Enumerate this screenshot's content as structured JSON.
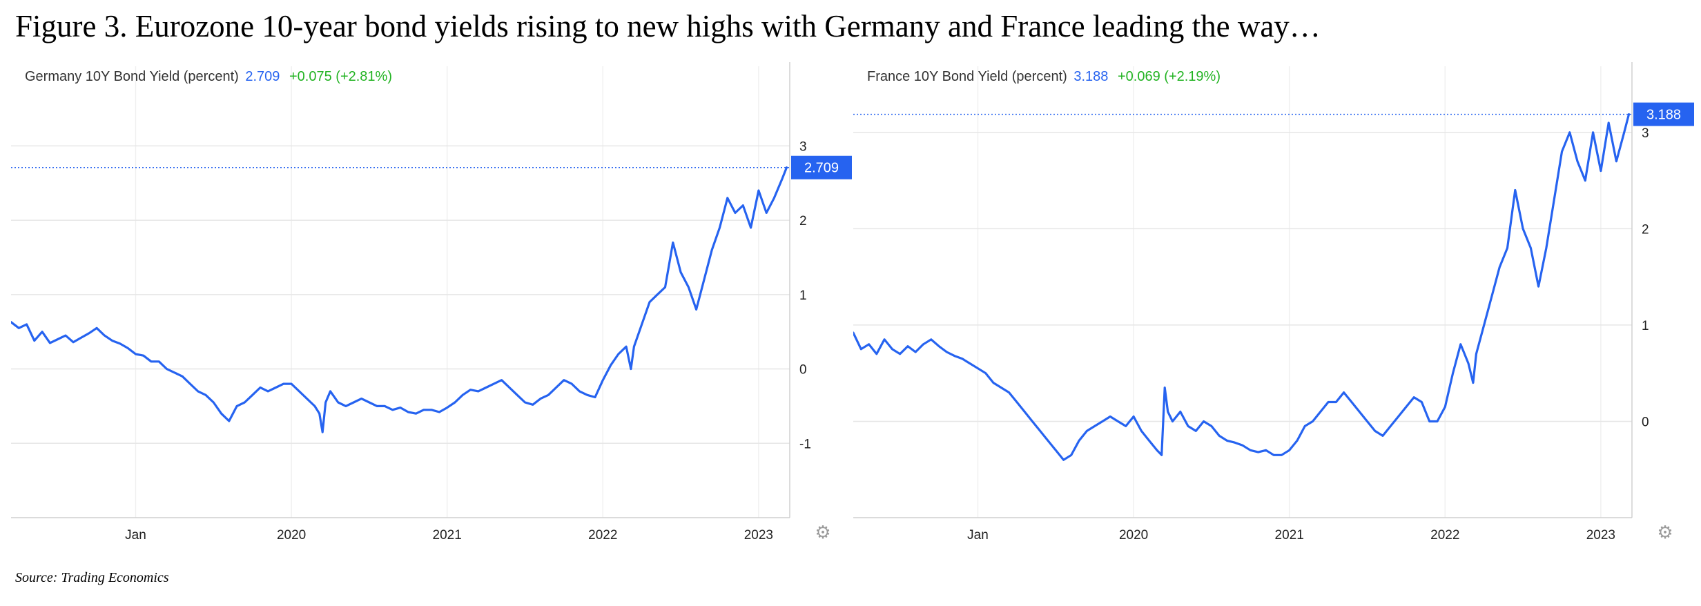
{
  "figure": {
    "title": "Figure 3. Eurozone 10-year bond yields rising to new highs with Germany and France leading the way…",
    "source": "Source: Trading Economics"
  },
  "colors": {
    "line": "#2663f0",
    "change": "#22b322",
    "grid": "#e6e6e6",
    "label_bg": "#2663f0"
  },
  "icons": {
    "settings": "gear-icon"
  },
  "chart_data": [
    {
      "type": "line",
      "title": "Germany 10Y Bond Yield (percent)",
      "last_value": "2.709",
      "change": "+0.075 (+2.81%)",
      "series": [
        {
          "name": "Germany 10Y Bond Yield"
        }
      ],
      "x_ticks": [
        {
          "label": "Jan",
          "value": 2019.0
        },
        {
          "label": "2020",
          "value": 2020.0
        },
        {
          "label": "2021",
          "value": 2021.0
        },
        {
          "label": "2022",
          "value": 2022.0
        },
        {
          "label": "2023",
          "value": 2023.0
        }
      ],
      "y_ticks": [
        -1,
        0,
        1,
        2,
        3
      ],
      "xlim": [
        2018.2,
        2023.2
      ],
      "ylim": [
        -2.0,
        3.7
      ],
      "x": [
        2018.2,
        2018.25,
        2018.3,
        2018.35,
        2018.4,
        2018.45,
        2018.5,
        2018.55,
        2018.6,
        2018.65,
        2018.7,
        2018.75,
        2018.8,
        2018.85,
        2018.9,
        2018.95,
        2019.0,
        2019.05,
        2019.1,
        2019.15,
        2019.2,
        2019.25,
        2019.3,
        2019.35,
        2019.4,
        2019.45,
        2019.5,
        2019.55,
        2019.6,
        2019.65,
        2019.7,
        2019.75,
        2019.8,
        2019.85,
        2019.9,
        2019.95,
        2020.0,
        2020.05,
        2020.1,
        2020.15,
        2020.18,
        2020.2,
        2020.22,
        2020.25,
        2020.3,
        2020.35,
        2020.4,
        2020.45,
        2020.5,
        2020.55,
        2020.6,
        2020.65,
        2020.7,
        2020.75,
        2020.8,
        2020.85,
        2020.9,
        2020.95,
        2021.0,
        2021.05,
        2021.1,
        2021.15,
        2021.2,
        2021.25,
        2021.3,
        2021.35,
        2021.4,
        2021.45,
        2021.5,
        2021.55,
        2021.6,
        2021.65,
        2021.7,
        2021.75,
        2021.8,
        2021.85,
        2021.9,
        2021.95,
        2022.0,
        2022.05,
        2022.1,
        2022.15,
        2022.18,
        2022.2,
        2022.25,
        2022.3,
        2022.35,
        2022.4,
        2022.45,
        2022.5,
        2022.55,
        2022.6,
        2022.65,
        2022.7,
        2022.75,
        2022.8,
        2022.85,
        2022.9,
        2022.95,
        2023.0,
        2023.05,
        2023.1,
        2023.15,
        2023.18
      ],
      "y": [
        0.63,
        0.55,
        0.6,
        0.38,
        0.5,
        0.35,
        0.4,
        0.45,
        0.36,
        0.42,
        0.48,
        0.55,
        0.45,
        0.38,
        0.34,
        0.28,
        0.2,
        0.18,
        0.1,
        0.1,
        0.0,
        -0.05,
        -0.1,
        -0.2,
        -0.3,
        -0.35,
        -0.45,
        -0.6,
        -0.7,
        -0.5,
        -0.45,
        -0.35,
        -0.25,
        -0.3,
        -0.25,
        -0.2,
        -0.2,
        -0.3,
        -0.4,
        -0.5,
        -0.6,
        -0.85,
        -0.45,
        -0.3,
        -0.45,
        -0.5,
        -0.45,
        -0.4,
        -0.45,
        -0.5,
        -0.5,
        -0.55,
        -0.52,
        -0.58,
        -0.6,
        -0.55,
        -0.55,
        -0.58,
        -0.52,
        -0.45,
        -0.35,
        -0.28,
        -0.3,
        -0.25,
        -0.2,
        -0.15,
        -0.25,
        -0.35,
        -0.45,
        -0.48,
        -0.4,
        -0.35,
        -0.25,
        -0.15,
        -0.2,
        -0.3,
        -0.35,
        -0.38,
        -0.15,
        0.05,
        0.2,
        0.3,
        0.0,
        0.3,
        0.6,
        0.9,
        1.0,
        1.1,
        1.7,
        1.3,
        1.1,
        0.8,
        1.2,
        1.6,
        1.9,
        2.3,
        2.1,
        2.2,
        1.9,
        2.4,
        2.1,
        2.3,
        2.55,
        2.709
      ]
    },
    {
      "type": "line",
      "title": "France 10Y Bond Yield (percent)",
      "last_value": "3.188",
      "change": "+0.069 (+2.19%)",
      "series": [
        {
          "name": "France 10Y Bond Yield"
        }
      ],
      "x_ticks": [
        {
          "label": "Jan",
          "value": 2019.0
        },
        {
          "label": "2020",
          "value": 2020.0
        },
        {
          "label": "2021",
          "value": 2021.0
        },
        {
          "label": "2022",
          "value": 2022.0
        },
        {
          "label": "2023",
          "value": 2023.0
        }
      ],
      "y_ticks": [
        0,
        1,
        2,
        3
      ],
      "xlim": [
        2018.2,
        2023.2
      ],
      "ylim": [
        -1.0,
        3.4
      ],
      "x": [
        2018.2,
        2018.25,
        2018.3,
        2018.35,
        2018.4,
        2018.45,
        2018.5,
        2018.55,
        2018.6,
        2018.65,
        2018.7,
        2018.75,
        2018.8,
        2018.85,
        2018.9,
        2018.95,
        2019.0,
        2019.05,
        2019.1,
        2019.15,
        2019.2,
        2019.25,
        2019.3,
        2019.35,
        2019.4,
        2019.45,
        2019.5,
        2019.55,
        2019.6,
        2019.65,
        2019.7,
        2019.75,
        2019.8,
        2019.85,
        2019.9,
        2019.95,
        2020.0,
        2020.05,
        2020.1,
        2020.15,
        2020.18,
        2020.2,
        2020.22,
        2020.25,
        2020.3,
        2020.35,
        2020.4,
        2020.45,
        2020.5,
        2020.55,
        2020.6,
        2020.65,
        2020.7,
        2020.75,
        2020.8,
        2020.85,
        2020.9,
        2020.95,
        2021.0,
        2021.05,
        2021.1,
        2021.15,
        2021.2,
        2021.25,
        2021.3,
        2021.35,
        2021.4,
        2021.45,
        2021.5,
        2021.55,
        2021.6,
        2021.65,
        2021.7,
        2021.75,
        2021.8,
        2021.85,
        2021.9,
        2021.95,
        2022.0,
        2022.05,
        2022.1,
        2022.15,
        2022.18,
        2022.2,
        2022.25,
        2022.3,
        2022.35,
        2022.4,
        2022.45,
        2022.5,
        2022.55,
        2022.6,
        2022.65,
        2022.7,
        2022.75,
        2022.8,
        2022.85,
        2022.9,
        2022.95,
        2023.0,
        2023.05,
        2023.1,
        2023.15,
        2023.18
      ],
      "y": [
        0.92,
        0.75,
        0.8,
        0.7,
        0.85,
        0.75,
        0.7,
        0.78,
        0.72,
        0.8,
        0.85,
        0.78,
        0.72,
        0.68,
        0.65,
        0.6,
        0.55,
        0.5,
        0.4,
        0.35,
        0.3,
        0.2,
        0.1,
        0.0,
        -0.1,
        -0.2,
        -0.3,
        -0.4,
        -0.35,
        -0.2,
        -0.1,
        -0.05,
        0.0,
        0.05,
        0.0,
        -0.05,
        0.05,
        -0.1,
        -0.2,
        -0.3,
        -0.35,
        0.35,
        0.1,
        0.0,
        0.1,
        -0.05,
        -0.1,
        0.0,
        -0.05,
        -0.15,
        -0.2,
        -0.22,
        -0.25,
        -0.3,
        -0.32,
        -0.3,
        -0.35,
        -0.35,
        -0.3,
        -0.2,
        -0.05,
        0.0,
        0.1,
        0.2,
        0.2,
        0.3,
        0.2,
        0.1,
        0.0,
        -0.1,
        -0.15,
        -0.05,
        0.05,
        0.15,
        0.25,
        0.2,
        0.0,
        0.0,
        0.15,
        0.5,
        0.8,
        0.6,
        0.4,
        0.7,
        1.0,
        1.3,
        1.6,
        1.8,
        2.4,
        2.0,
        1.8,
        1.4,
        1.8,
        2.3,
        2.8,
        3.0,
        2.7,
        2.5,
        3.0,
        2.6,
        3.1,
        2.7,
        3.0,
        3.188
      ]
    }
  ]
}
